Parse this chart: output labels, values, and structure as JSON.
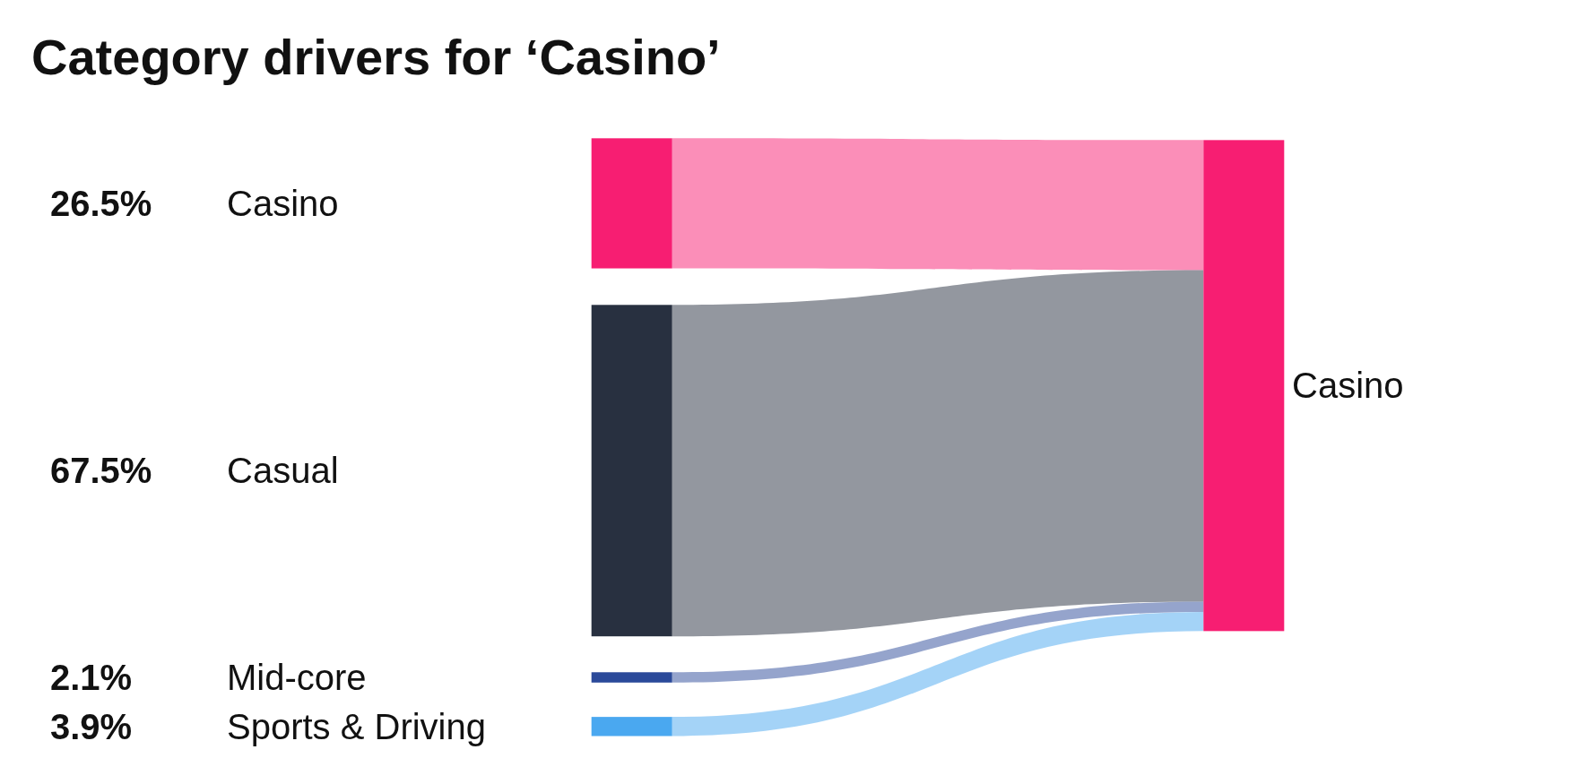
{
  "chart_data": {
    "type": "other",
    "title": "Category drivers for ‘Casino’",
    "categories": [
      "Casino",
      "Casual",
      "Mid-core",
      "Sports & Driving"
    ],
    "colors": [
      "#f71e72",
      "#283040",
      "#2b4a9a",
      "#4aa8f0"
    ],
    "values": [
      26.5,
      67.5,
      2.1,
      3.9
    ],
    "value_labels": [
      "26.5%",
      "67.5%",
      "2.1%",
      "3.9%"
    ],
    "annotations": [
      "Casino"
    ]
  }
}
